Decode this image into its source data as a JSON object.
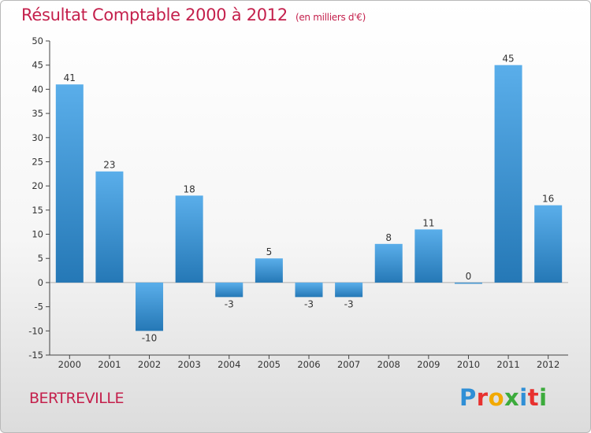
{
  "header": {
    "title": "Résultat Comptable 2000 à 2012",
    "subtitle": "(en milliers d'€)"
  },
  "footer": {
    "commune": "BERTREVILLE",
    "logo_letters": [
      "P",
      "r",
      "o",
      "x",
      "i",
      "t",
      "i"
    ],
    "logo_colors": [
      "#2f8fd6",
      "#e8312f",
      "#f2a900",
      "#3cab3c",
      "#2f8fd6",
      "#e8312f",
      "#3cab3c"
    ]
  },
  "colors": {
    "bar_light": "#5aaeea",
    "bar_dark": "#2578b6",
    "accent": "#c4204c"
  },
  "chart_data": {
    "type": "bar",
    "categories": [
      "2000",
      "2001",
      "2002",
      "2003",
      "2004",
      "2005",
      "2006",
      "2007",
      "2008",
      "2009",
      "2010",
      "2011",
      "2012"
    ],
    "values": [
      41,
      23,
      -10,
      18,
      -3,
      5,
      -3,
      -3,
      8,
      11,
      0,
      45,
      16
    ],
    "data_labels": [
      "41",
      "23",
      "-10",
      "18",
      "-3",
      "5",
      "-3",
      "-3",
      "8",
      "11",
      "0",
      "45",
      "16"
    ],
    "title": "Résultat Comptable 2000 à 2012",
    "xlabel": "",
    "ylabel": "",
    "ylim": [
      -15,
      50
    ],
    "yticks": [
      -15,
      -10,
      -5,
      0,
      5,
      10,
      15,
      20,
      25,
      30,
      35,
      40,
      45,
      50
    ],
    "grid": false,
    "legend": "none"
  }
}
